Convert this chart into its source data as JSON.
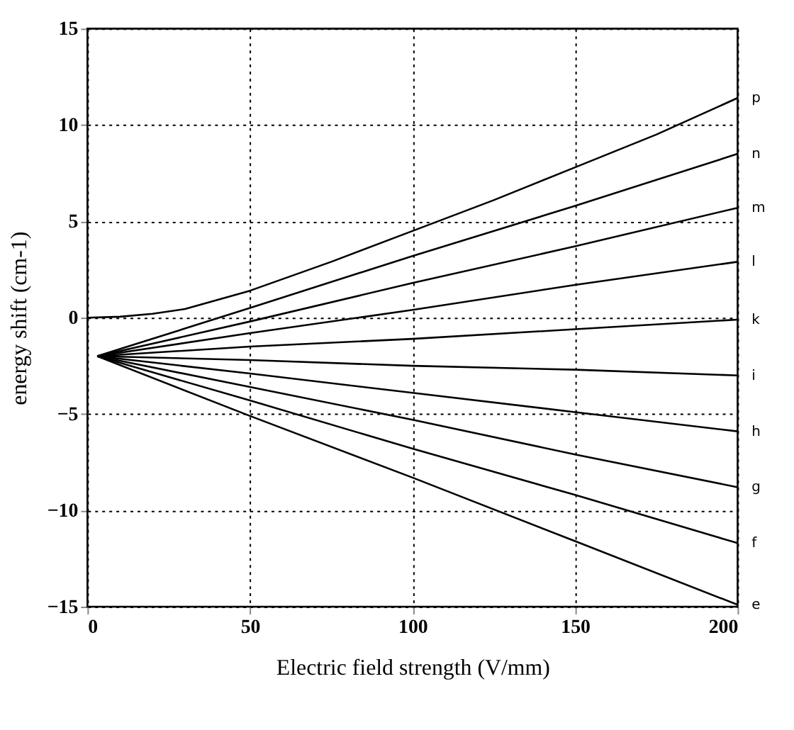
{
  "chart_data": {
    "type": "line",
    "xlabel": "Electric  field strength (V/mm)",
    "ylabel": "energy shift (cm-1)",
    "xlim": [
      0,
      200
    ],
    "xticks": [
      0,
      50,
      100,
      150,
      200
    ],
    "ylim": [
      -15,
      15
    ],
    "yticks": [
      -15,
      -10,
      -5,
      0,
      5,
      10,
      15
    ],
    "grid": true,
    "line_style": "solid",
    "legend": false,
    "marker": "none",
    "series": [
      {
        "name": "p",
        "color": "#000000",
        "x": [
          0,
          10,
          20,
          30,
          50,
          75,
          100,
          125,
          150,
          175,
          200
        ],
        "values": [
          0,
          0.05,
          0.2,
          0.45,
          1.4,
          2.9,
          4.5,
          6.1,
          7.8,
          9.5,
          11.4
        ]
      },
      {
        "name": "n",
        "color": "#000000",
        "x": [
          3,
          50,
          100,
          150,
          200
        ],
        "values": [
          -2,
          0.5,
          3.2,
          5.8,
          8.5
        ]
      },
      {
        "name": "m",
        "color": "#000000",
        "x": [
          3,
          50,
          100,
          150,
          200
        ],
        "values": [
          -2,
          -0.2,
          1.8,
          3.7,
          5.7
        ]
      },
      {
        "name": "l",
        "color": "#000000",
        "x": [
          3,
          50,
          100,
          150,
          200
        ],
        "values": [
          -2,
          -0.8,
          0.4,
          1.7,
          2.9
        ]
      },
      {
        "name": "k",
        "color": "#000000",
        "x": [
          3,
          50,
          100,
          150,
          200
        ],
        "values": [
          -2,
          -1.5,
          -1.1,
          -0.6,
          -0.1
        ]
      },
      {
        "name": "i",
        "color": "#000000",
        "x": [
          3,
          50,
          100,
          150,
          200
        ],
        "values": [
          -2,
          -2.2,
          -2.5,
          -2.7,
          -3
        ]
      },
      {
        "name": "h",
        "color": "#000000",
        "x": [
          3,
          50,
          100,
          150,
          200
        ],
        "values": [
          -2,
          -2.9,
          -3.9,
          -4.9,
          -5.9
        ]
      },
      {
        "name": "g",
        "color": "#000000",
        "x": [
          3,
          50,
          100,
          150,
          200
        ],
        "values": [
          -2,
          -3.6,
          -5.3,
          -7.1,
          -8.8
        ]
      },
      {
        "name": "f",
        "color": "#000000",
        "x": [
          3,
          50,
          100,
          150,
          200
        ],
        "values": [
          -2,
          -4.3,
          -6.8,
          -9.2,
          -11.7
        ]
      },
      {
        "name": "e",
        "color": "#000000",
        "x": [
          3,
          50,
          100,
          150,
          200
        ],
        "values": [
          -2,
          -5.1,
          -8.3,
          -11.6,
          -14.9
        ]
      }
    ]
  }
}
